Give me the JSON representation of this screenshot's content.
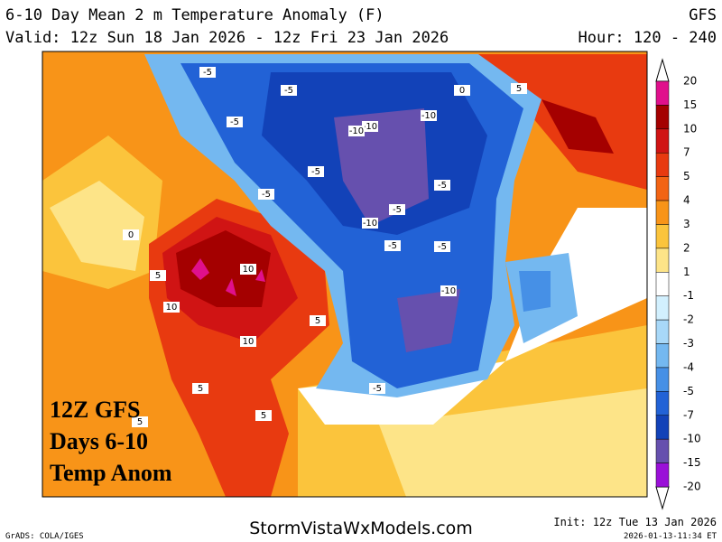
{
  "header": {
    "title": "6-10 Day Mean 2 m Temperature Anomaly (F)",
    "model": "GFS",
    "valid": "Valid: 12z Sun 18 Jan 2026 - 12z Fri 23 Jan 2026",
    "hour": "Hour: 120 - 240"
  },
  "overlay": [
    "12Z GFS",
    "Days 6-10",
    "Temp Anom"
  ],
  "colorbar": {
    "labels": [
      20,
      15,
      10,
      7,
      5,
      4,
      3,
      2,
      1,
      -1,
      -2,
      -3,
      -4,
      -5,
      -7,
      -10,
      -15,
      -20
    ],
    "colors": [
      "#e0108c",
      "#a40000",
      "#d01414",
      "#e83a10",
      "#f26414",
      "#f89418",
      "#fbc43c",
      "#fde488",
      "#ffffff",
      "#d2f0fe",
      "#a8d8f8",
      "#74b8f0",
      "#4690e6",
      "#2262d6",
      "#1242b8",
      "#6650ae",
      "#9a10d8"
    ]
  },
  "contour_labels": [
    "-5",
    "-5",
    "-5",
    "-10",
    "-10",
    "-10",
    "-5",
    "-5",
    "-5",
    "-10",
    "-5",
    "-5",
    "-10",
    "-5",
    "5",
    "10",
    "10",
    "5",
    "10",
    "5",
    "5",
    "5",
    "5",
    "0",
    "0",
    "-5"
  ],
  "footer": {
    "site": "StormVistaWxModels.com",
    "grads": "GrADS: COLA/IGES",
    "init": "Init: 12z Tue 13 Jan 2026",
    "stamp": "2026-01-13-11:34 ET"
  }
}
